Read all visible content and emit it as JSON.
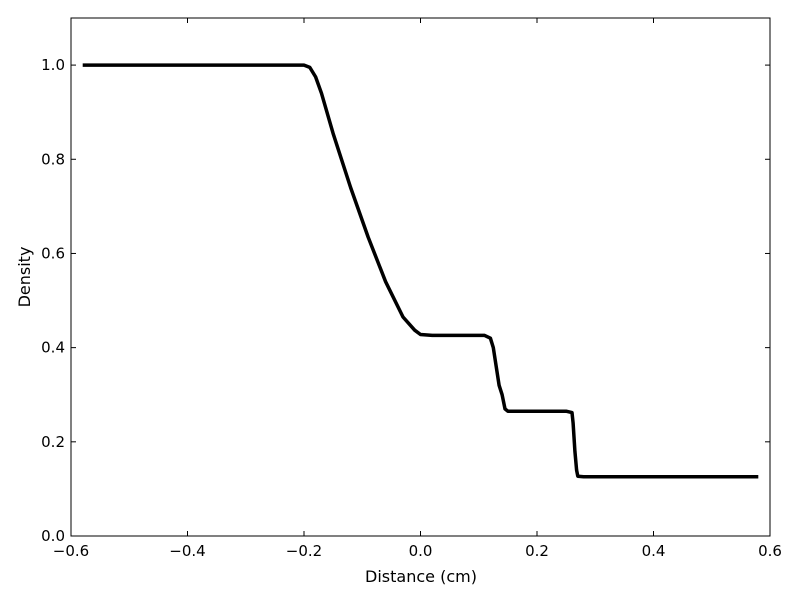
{
  "chart_data": {
    "type": "line",
    "title": "",
    "xlabel": "Distance (cm)",
    "ylabel": "Density",
    "xlim": [
      -0.6,
      0.6
    ],
    "ylim": [
      0.0,
      1.1
    ],
    "xticks": [
      -0.6,
      -0.4,
      -0.2,
      0.0,
      0.2,
      0.4,
      0.6
    ],
    "yticks": [
      0.0,
      0.2,
      0.4,
      0.6,
      0.8,
      1.0
    ],
    "xtick_labels": [
      "−0.6",
      "−0.4",
      "−0.2",
      "0.0",
      "0.2",
      "0.4",
      "0.6"
    ],
    "ytick_labels": [
      "0.0",
      "0.2",
      "0.4",
      "0.6",
      "0.8",
      "1.0"
    ],
    "grid": false,
    "line_color": "#000000",
    "series": [
      {
        "x": [
          -0.58,
          -0.2,
          -0.19,
          -0.18,
          -0.17,
          -0.15,
          -0.12,
          -0.09,
          -0.06,
          -0.03,
          -0.01,
          0.0,
          0.02,
          0.05,
          0.08,
          0.11,
          0.12,
          0.125,
          0.13,
          0.135,
          0.14,
          0.145,
          0.15,
          0.16,
          0.2,
          0.25,
          0.26,
          0.262,
          0.265,
          0.268,
          0.27,
          0.28,
          0.4,
          0.5,
          0.58
        ],
        "y": [
          1.0,
          1.0,
          0.995,
          0.975,
          0.94,
          0.855,
          0.74,
          0.635,
          0.54,
          0.465,
          0.437,
          0.428,
          0.426,
          0.426,
          0.426,
          0.426,
          0.42,
          0.4,
          0.36,
          0.32,
          0.3,
          0.27,
          0.265,
          0.265,
          0.265,
          0.265,
          0.262,
          0.24,
          0.18,
          0.14,
          0.127,
          0.126,
          0.126,
          0.126,
          0.126
        ]
      }
    ]
  }
}
